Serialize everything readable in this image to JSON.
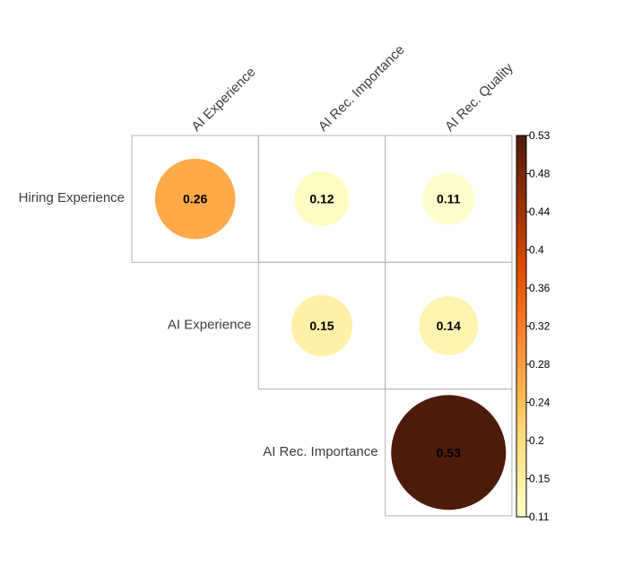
{
  "chart_data": {
    "type": "heatmap",
    "style": "upper-triangle correlation plot with circles",
    "columns": [
      "AI Experience",
      "AI Rec. Importance",
      "AI Rec. Quality"
    ],
    "rows": [
      "Hiring Experience",
      "AI Experience",
      "AI Rec. Importance"
    ],
    "cells": [
      {
        "row": "Hiring Experience",
        "col": "AI Experience",
        "value": 0.26,
        "label": "0.26"
      },
      {
        "row": "Hiring Experience",
        "col": "AI Rec. Importance",
        "value": 0.12,
        "label": "0.12"
      },
      {
        "row": "Hiring Experience",
        "col": "AI Rec. Quality",
        "value": 0.11,
        "label": "0.11"
      },
      {
        "row": "AI Experience",
        "col": "AI Rec. Importance",
        "value": 0.15,
        "label": "0.15"
      },
      {
        "row": "AI Experience",
        "col": "AI Rec. Quality",
        "value": 0.14,
        "label": "0.14"
      },
      {
        "row": "AI Rec. Importance",
        "col": "AI Rec. Quality",
        "value": 0.53,
        "label": "0.53"
      }
    ],
    "colorbar": {
      "range": [
        0.11,
        0.53
      ],
      "ticks": [
        {
          "value": 0.53,
          "label": "0.53"
        },
        {
          "value": 0.48,
          "label": "0.48"
        },
        {
          "value": 0.44,
          "label": "0.44"
        },
        {
          "value": 0.4,
          "label": "0.4"
        },
        {
          "value": 0.36,
          "label": "0.36"
        },
        {
          "value": 0.32,
          "label": "0.32"
        },
        {
          "value": 0.28,
          "label": "0.28"
        },
        {
          "value": 0.24,
          "label": "0.24"
        },
        {
          "value": 0.2,
          "label": "0.2"
        },
        {
          "value": 0.15,
          "label": "0.15"
        },
        {
          "value": 0.11,
          "label": "0.11"
        }
      ],
      "colors": [
        "#ffffcc",
        "#ffeda0",
        "#fed976",
        "#feb24c",
        "#fd8d3c",
        "#f16913",
        "#d94801",
        "#a63603",
        "#7f2704",
        "#4d1b0a"
      ],
      "placement": "right"
    }
  }
}
